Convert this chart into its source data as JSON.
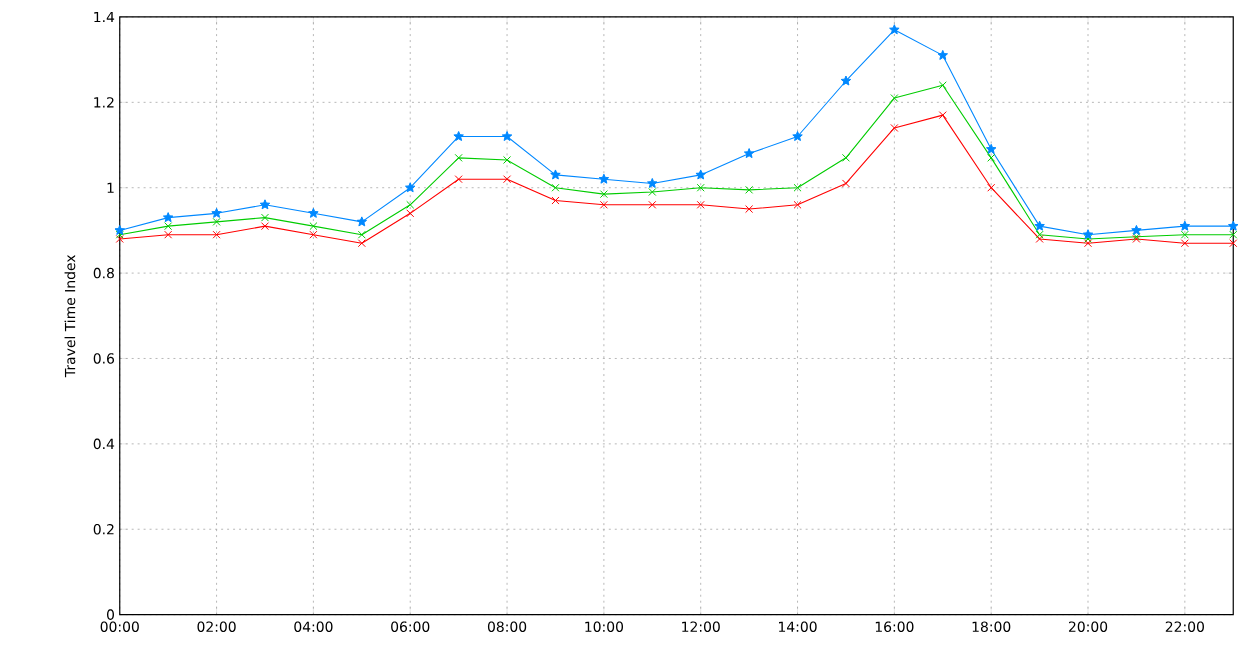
{
  "chart_data": {
    "type": "line",
    "ylabel": "Travel Time Index",
    "grid": true,
    "line_style": "solid",
    "x": [
      0,
      1,
      2,
      3,
      4,
      5,
      6,
      7,
      8,
      9,
      10,
      11,
      12,
      13,
      14,
      15,
      16,
      17,
      18,
      19,
      20,
      21,
      22,
      23
    ],
    "xlim": [
      0,
      23
    ],
    "ylim": [
      0,
      1.4
    ],
    "xticks": [
      {
        "value": 0,
        "label": "00:00"
      },
      {
        "value": 2,
        "label": "02:00"
      },
      {
        "value": 4,
        "label": "04:00"
      },
      {
        "value": 6,
        "label": "06:00"
      },
      {
        "value": 8,
        "label": "08:00"
      },
      {
        "value": 10,
        "label": "10:00"
      },
      {
        "value": 12,
        "label": "12:00"
      },
      {
        "value": 14,
        "label": "14:00"
      },
      {
        "value": 16,
        "label": "16:00"
      },
      {
        "value": 18,
        "label": "18:00"
      },
      {
        "value": 20,
        "label": "20:00"
      },
      {
        "value": 22,
        "label": "22:00"
      }
    ],
    "yticks": [
      0,
      0.2,
      0.4,
      0.6,
      0.8,
      1,
      1.2,
      1.4
    ],
    "series": [
      {
        "color": "#ff0000",
        "marker": "cross",
        "values": [
          0.88,
          0.89,
          0.89,
          0.91,
          0.89,
          0.87,
          0.94,
          1.02,
          1.02,
          0.97,
          0.96,
          0.96,
          0.96,
          0.95,
          0.96,
          1.01,
          1.14,
          1.17,
          1.0,
          0.88,
          0.87,
          0.88,
          0.87,
          0.87
        ]
      },
      {
        "color": "#00cc00",
        "marker": "cross",
        "values": [
          0.89,
          0.91,
          0.92,
          0.93,
          0.91,
          0.89,
          0.96,
          1.07,
          1.065,
          1.0,
          0.985,
          0.99,
          1.0,
          0.995,
          1.0,
          1.07,
          1.21,
          1.24,
          1.07,
          0.89,
          0.88,
          0.885,
          0.89,
          0.89
        ]
      },
      {
        "color": "#0088ff",
        "marker": "star",
        "values": [
          0.9,
          0.93,
          0.94,
          0.96,
          0.94,
          0.92,
          1.0,
          1.12,
          1.12,
          1.03,
          1.02,
          1.01,
          1.03,
          1.08,
          1.12,
          1.25,
          1.37,
          1.31,
          1.09,
          0.91,
          0.89,
          0.9,
          0.91,
          0.91
        ]
      }
    ]
  }
}
